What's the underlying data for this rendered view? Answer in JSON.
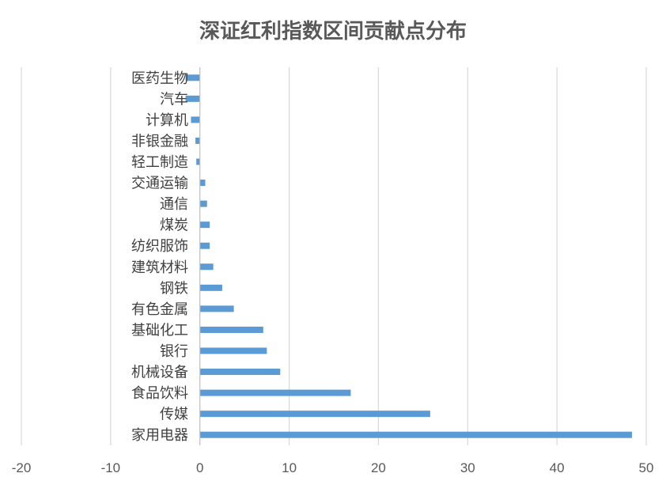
{
  "chart_data": {
    "type": "bar",
    "orientation": "horizontal",
    "title": "深证红利指数区间贡献点分布",
    "xlabel": "",
    "ylabel": "",
    "xlim": [
      -20,
      50
    ],
    "xticks": [
      -20,
      -10,
      0,
      10,
      20,
      30,
      40,
      50
    ],
    "grid": true,
    "legend": "none",
    "bar_color": "#5b9bd5",
    "categories": [
      "家用电器",
      "传媒",
      "食品饮料",
      "机械设备",
      "银行",
      "基础化工",
      "有色金属",
      "钢铁",
      "建筑材料",
      "纺织服饰",
      "煤炭",
      "通信",
      "交通运输",
      "轻工制造",
      "非银金融",
      "计算机",
      "汽车",
      "医药生物"
    ],
    "values": [
      48.4,
      25.8,
      16.9,
      9.0,
      7.5,
      7.1,
      3.8,
      2.5,
      1.5,
      1.1,
      1.1,
      0.8,
      0.6,
      -0.4,
      -0.5,
      -1.0,
      -1.6,
      -1.6
    ]
  }
}
